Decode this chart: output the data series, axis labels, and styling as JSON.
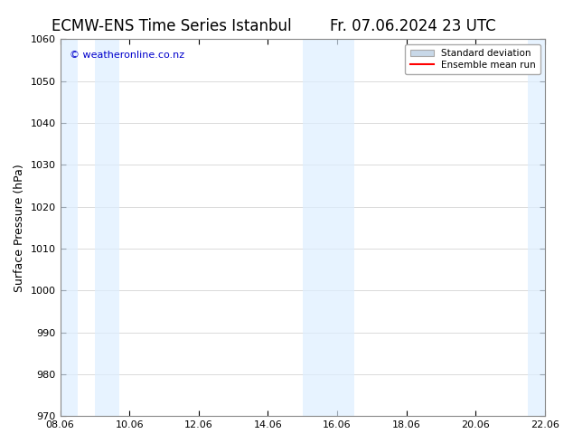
{
  "title_left": "ECMW-ENS Time Series Istanbul",
  "title_right": "Fr. 07.06.2024 23 UTC",
  "ylabel": "Surface Pressure (hPa)",
  "xlabel_ticks": [
    "08.06",
    "10.06",
    "12.06",
    "14.06",
    "16.06",
    "18.06",
    "20.06",
    "22.06"
  ],
  "xlim": [
    0,
    14
  ],
  "ylim": [
    970,
    1060
  ],
  "yticks": [
    970,
    980,
    990,
    1000,
    1010,
    1020,
    1030,
    1040,
    1050,
    1060
  ],
  "watermark": "© weatheronline.co.nz",
  "watermark_color": "#0000cc",
  "legend_labels": [
    "Standard deviation",
    "Ensemble mean run"
  ],
  "legend_colors": [
    "#c8d8e8",
    "#ff0000"
  ],
  "shaded_band_color": "#ddeeff",
  "shaded_band_alpha": 0.7,
  "shaded_columns": [
    {
      "x_start": 0.0,
      "x_end": 1.5
    },
    {
      "x_start": 2.0,
      "x_end": 3.0
    },
    {
      "x_start": 7.5,
      "x_end": 8.5
    },
    {
      "x_start": 13.5,
      "x_end": 14.0
    }
  ],
  "background_color": "#ffffff",
  "grid_color": "#cccccc",
  "tick_color": "#000000",
  "title_fontsize": 12,
  "axis_label_fontsize": 9,
  "tick_fontsize": 8
}
